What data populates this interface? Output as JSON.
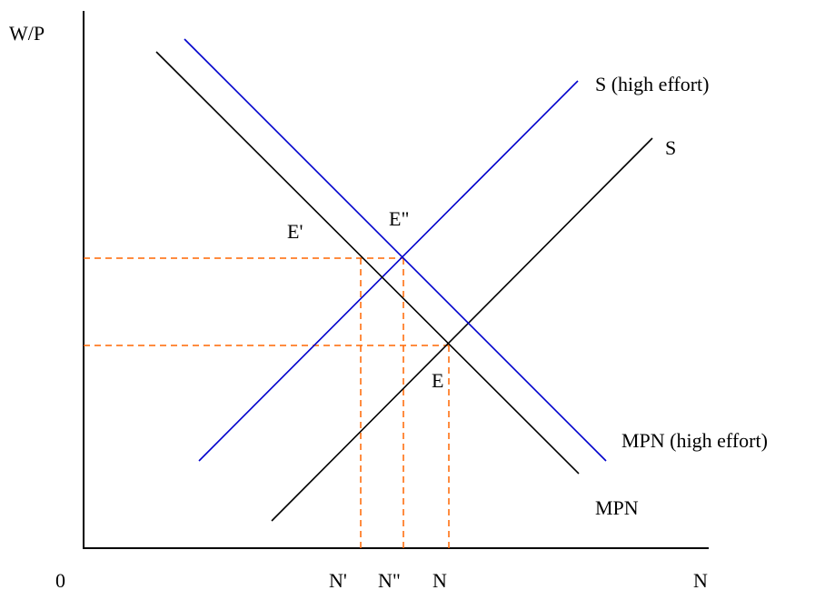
{
  "axes": {
    "y_label": "W/P",
    "x_label": "N",
    "origin_label": "0"
  },
  "curves": {
    "supply": {
      "label": "S",
      "color": "#000000"
    },
    "supply_high": {
      "label": "S (high effort)",
      "color": "#0000cc"
    },
    "mpn": {
      "label": "MPN",
      "color": "#000000"
    },
    "mpn_high": {
      "label": "MPN (high effort)",
      "color": "#0000cc"
    }
  },
  "points": {
    "e": "E",
    "e_prime": "E'",
    "e_double_prime": "E\""
  },
  "ticks": {
    "n": "N",
    "n_prime": "N'",
    "n_double_prime": "N\""
  },
  "guide_color": "#ff6600"
}
